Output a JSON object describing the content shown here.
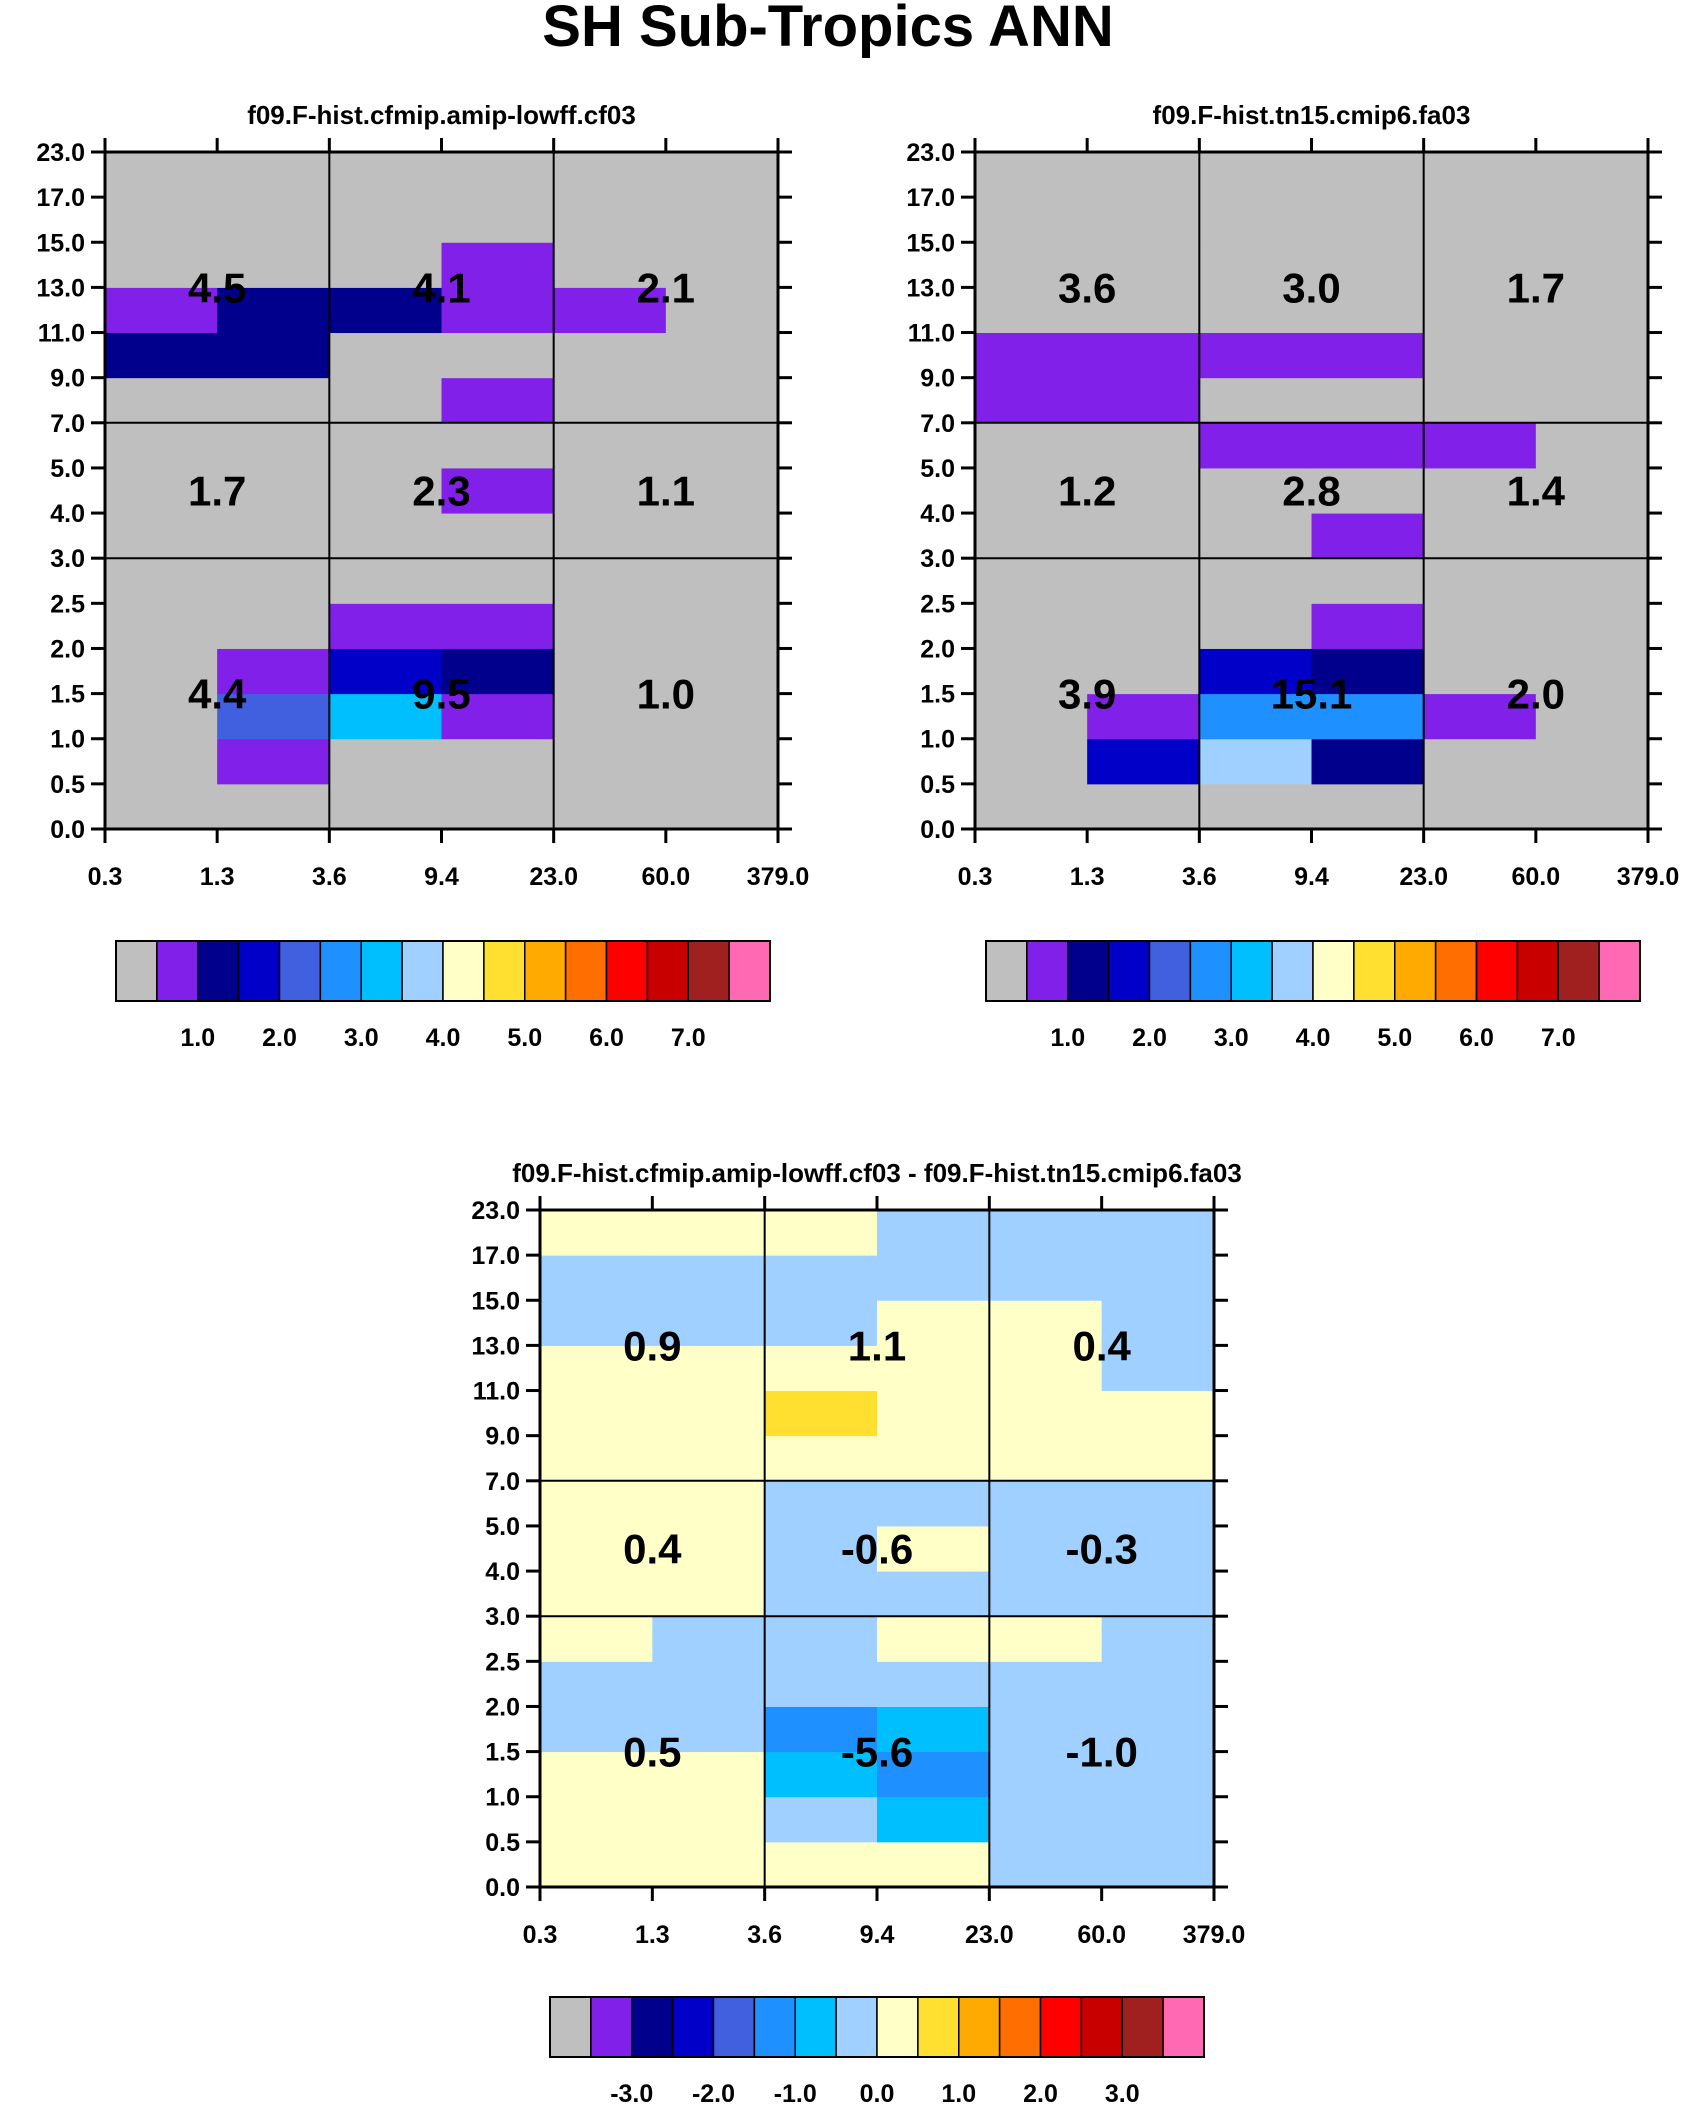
{
  "title": "SH Sub-Tropics ANN",
  "chart_data": [
    {
      "type": "heatmap",
      "title": "f09.F-hist.cfmip.amip-lowff.cf03",
      "xticklabels": [
        "0.3",
        "1.3",
        "3.6",
        "9.4",
        "23.0",
        "60.0",
        "379.0"
      ],
      "yticklabels": [
        "0.0",
        "0.5",
        "1.0",
        "1.5",
        "2.0",
        "2.5",
        "3.0",
        "4.0",
        "5.0",
        "7.0",
        "9.0",
        "11.0",
        "13.0",
        "15.0",
        "17.0",
        "23.0"
      ],
      "grid": "3x3 group lines",
      "cells": [
        [
          0,
          0,
          0,
          0,
          0,
          0
        ],
        [
          0,
          1,
          0,
          0,
          0,
          0
        ],
        [
          0,
          4,
          6,
          1,
          0,
          0
        ],
        [
          0,
          1,
          3,
          2,
          0,
          0
        ],
        [
          0,
          0,
          1,
          1,
          0,
          0
        ],
        [
          0,
          0,
          0,
          0,
          0,
          0
        ],
        [
          0,
          0,
          0,
          0,
          0,
          0
        ],
        [
          0,
          0,
          0,
          1,
          0,
          0
        ],
        [
          0,
          0,
          0,
          0,
          0,
          0
        ],
        [
          0,
          0,
          0,
          1,
          0,
          0
        ],
        [
          2,
          2,
          0,
          0,
          0,
          0
        ],
        [
          1,
          2,
          2,
          1,
          1,
          0
        ],
        [
          0,
          0,
          0,
          1,
          0,
          0
        ],
        [
          0,
          0,
          0,
          0,
          0,
          0
        ],
        [
          0,
          0,
          0,
          0,
          0,
          0
        ]
      ],
      "group_values": [
        [
          "4.4",
          "9.5",
          "1.0"
        ],
        [
          "1.7",
          "2.3",
          "1.1"
        ],
        [
          "4.5",
          "4.1",
          "2.1"
        ]
      ],
      "colorbar": {
        "colors": [
          "#bfbfbf",
          "#8020e8",
          "#00008c",
          "#0000c8",
          "#4060e0",
          "#1e90ff",
          "#00bfff",
          "#a0d0ff",
          "#ffffc8",
          "#ffe030",
          "#ffaa00",
          "#ff6e00",
          "#ff0000",
          "#c80000",
          "#a02020",
          "#ff69b4"
        ],
        "labels": [
          "1.0",
          "2.0",
          "3.0",
          "4.0",
          "5.0",
          "6.0",
          "7.0"
        ]
      }
    },
    {
      "type": "heatmap",
      "title": "f09.F-hist.tn15.cmip6.fa03",
      "xticklabels": [
        "0.3",
        "1.3",
        "3.6",
        "9.4",
        "23.0",
        "60.0",
        "379.0"
      ],
      "yticklabels": [
        "0.0",
        "0.5",
        "1.0",
        "1.5",
        "2.0",
        "2.5",
        "3.0",
        "4.0",
        "5.0",
        "7.0",
        "9.0",
        "11.0",
        "13.0",
        "15.0",
        "17.0",
        "23.0"
      ],
      "grid": "3x3 group lines",
      "cells": [
        [
          0,
          0,
          0,
          0,
          0,
          0
        ],
        [
          0,
          3,
          7,
          2,
          0,
          0
        ],
        [
          0,
          1,
          5,
          5,
          1,
          0
        ],
        [
          0,
          0,
          3,
          2,
          0,
          0
        ],
        [
          0,
          0,
          0,
          1,
          0,
          0
        ],
        [
          0,
          0,
          0,
          0,
          0,
          0
        ],
        [
          0,
          0,
          0,
          1,
          0,
          0
        ],
        [
          0,
          0,
          0,
          0,
          0,
          0
        ],
        [
          0,
          0,
          1,
          1,
          1,
          0
        ],
        [
          1,
          1,
          0,
          0,
          0,
          0
        ],
        [
          1,
          1,
          1,
          1,
          0,
          0
        ],
        [
          0,
          0,
          0,
          0,
          0,
          0
        ],
        [
          0,
          0,
          0,
          0,
          0,
          0
        ],
        [
          0,
          0,
          0,
          0,
          0,
          0
        ],
        [
          0,
          0,
          0,
          0,
          0,
          0
        ]
      ],
      "group_values": [
        [
          "3.9",
          "15.1",
          "2.0"
        ],
        [
          "1.2",
          "2.8",
          "1.4"
        ],
        [
          "3.6",
          "3.0",
          "1.7"
        ]
      ],
      "colorbar": {
        "colors": [
          "#bfbfbf",
          "#8020e8",
          "#00008c",
          "#0000c8",
          "#4060e0",
          "#1e90ff",
          "#00bfff",
          "#a0d0ff",
          "#ffffc8",
          "#ffe030",
          "#ffaa00",
          "#ff6e00",
          "#ff0000",
          "#c80000",
          "#a02020",
          "#ff69b4"
        ],
        "labels": [
          "1.0",
          "2.0",
          "3.0",
          "4.0",
          "5.0",
          "6.0",
          "7.0"
        ]
      }
    },
    {
      "type": "heatmap",
      "title": "f09.F-hist.cfmip.amip-lowff.cf03 - f09.F-hist.tn15.cmip6.fa03",
      "xticklabels": [
        "0.3",
        "1.3",
        "3.6",
        "9.4",
        "23.0",
        "60.0",
        "379.0"
      ],
      "yticklabels": [
        "0.0",
        "0.5",
        "1.0",
        "1.5",
        "2.0",
        "2.5",
        "3.0",
        "4.0",
        "5.0",
        "7.0",
        "9.0",
        "11.0",
        "13.0",
        "15.0",
        "17.0",
        "23.0"
      ],
      "grid": "3x3 group lines",
      "cells": [
        [
          8,
          8,
          8,
          8,
          7,
          7
        ],
        [
          8,
          8,
          7,
          6,
          7,
          7
        ],
        [
          8,
          8,
          6,
          5,
          7,
          7
        ],
        [
          7,
          7,
          5,
          6,
          7,
          7
        ],
        [
          7,
          7,
          7,
          7,
          7,
          7
        ],
        [
          8,
          7,
          7,
          8,
          8,
          7
        ],
        [
          8,
          8,
          7,
          7,
          7,
          7
        ],
        [
          8,
          8,
          7,
          8,
          7,
          7
        ],
        [
          8,
          8,
          7,
          7,
          7,
          7
        ],
        [
          8,
          8,
          8,
          8,
          8,
          8
        ],
        [
          8,
          8,
          9,
          8,
          8,
          8
        ],
        [
          8,
          8,
          8,
          8,
          8,
          7
        ],
        [
          7,
          7,
          7,
          8,
          8,
          7
        ],
        [
          7,
          7,
          7,
          7,
          7,
          7
        ],
        [
          8,
          8,
          8,
          7,
          7,
          7
        ]
      ],
      "group_values": [
        [
          "0.5",
          "-5.6",
          "-1.0"
        ],
        [
          "0.4",
          "-0.6",
          "-0.3"
        ],
        [
          "0.9",
          "1.1",
          "0.4"
        ]
      ],
      "colorbar": {
        "colors": [
          "#bfbfbf",
          "#8020e8",
          "#00008c",
          "#0000c8",
          "#4060e0",
          "#1e90ff",
          "#00bfff",
          "#a0d0ff",
          "#ffffc8",
          "#ffe030",
          "#ffaa00",
          "#ff6e00",
          "#ff0000",
          "#c80000",
          "#a02020",
          "#ff69b4"
        ],
        "labels": [
          "-3.0",
          "-2.0",
          "-1.0",
          "0.0",
          "1.0",
          "2.0",
          "3.0"
        ]
      }
    }
  ]
}
